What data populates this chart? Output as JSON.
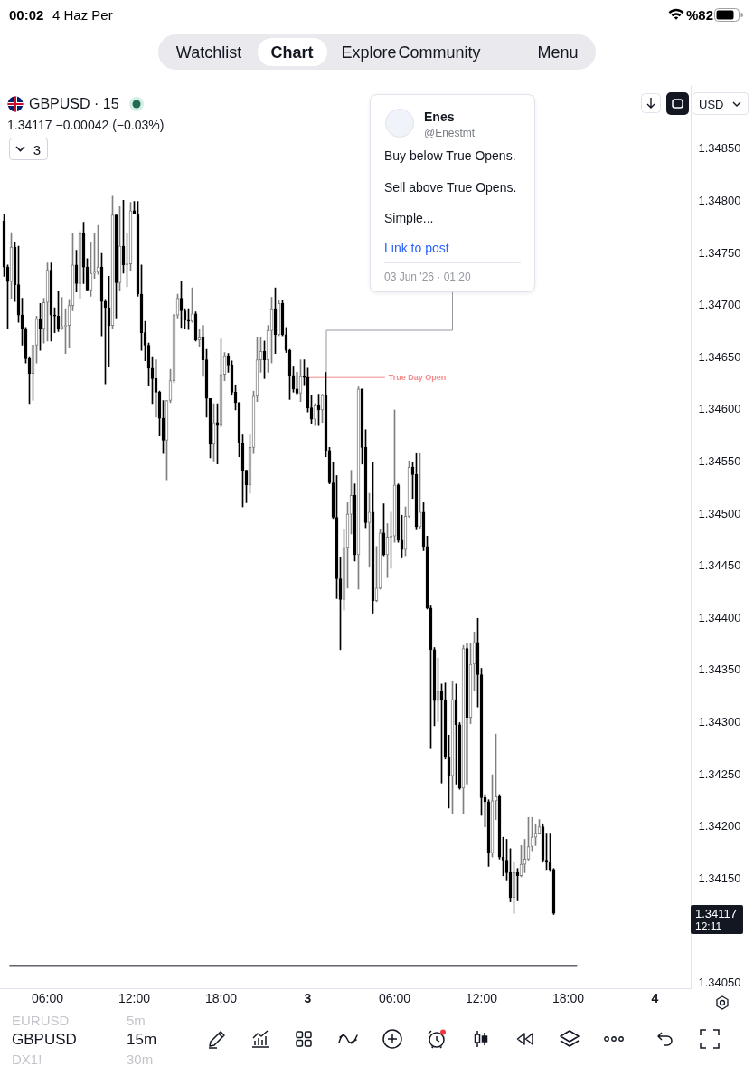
{
  "chart_data": {
    "type": "candlestick",
    "title": "GBPUSD · 15",
    "subtitle": "1.34117 −0.00042 (−0.03%)",
    "colors": [
      "#000000",
      "#000000",
      "#808080",
      "#000000",
      "#000000",
      "#000000",
      "#000000",
      "#000000",
      "#808080",
      "#808080",
      "#000000",
      "#808080",
      "#808080",
      "#000000",
      "#000000",
      "#000000",
      "#808080",
      "#808080",
      "#808080",
      "#808080",
      "#000000",
      "#808080",
      "#000000",
      "#000000",
      "#808080",
      "#808080",
      "#808080",
      "#000000",
      "#000000",
      "#000000",
      "#808080",
      "#000000",
      "#808080",
      "#000000",
      "#808080",
      "#808080",
      "#000000",
      "#000000",
      "#000000",
      "#000000",
      "#000000",
      "#000000",
      "#000000",
      "#000000",
      "#000000",
      "#808080",
      "#808080",
      "#808080",
      "#808080",
      "#000000",
      "#000000",
      "#000000",
      "#808080",
      "#000000",
      "#808080",
      "#000000",
      "#000000",
      "#000000",
      "#808080",
      "#000000",
      "#808080",
      "#808080",
      "#000000",
      "#000000",
      "#000000",
      "#000000",
      "#000000",
      "#000000",
      "#808080",
      "#808080",
      "#808080",
      "#808080",
      "#000000",
      "#808080",
      "#808080",
      "#000000",
      "#808080",
      "#000000",
      "#000000",
      "#000000",
      "#000000",
      "#000000",
      "#808080",
      "#000000",
      "#000000",
      "#000000",
      "#808080",
      "#000000",
      "#808080",
      "#000000",
      "#000000",
      "#000000",
      "#000000",
      "#000000",
      "#808080",
      "#808080",
      "#808080",
      "#000000",
      "#808080",
      "#000000",
      "#000000",
      "#808080",
      "#000000",
      "#808080",
      "#808080",
      "#000000",
      "#808080",
      "#808080",
      "#808080",
      "#000000",
      "#000000",
      "#808080",
      "#808080",
      "#000000",
      "#000000",
      "#808080",
      "#000000",
      "#000000",
      "#000000",
      "#000000",
      "#808080",
      "#000000",
      "#000000",
      "#000000",
      "#808080",
      "#000000",
      "#000000",
      "#808080",
      "#000000",
      "#808080",
      "#808080",
      "#000000",
      "#000000",
      "#000000",
      "#000000",
      "#808080",
      "#808080",
      "#000000",
      "#000000",
      "#000000",
      "#000000",
      "#808080",
      "#000000",
      "#808080",
      "#808080",
      "#808080",
      "#808080",
      "#808080",
      "#808080",
      "#000000",
      "#000000",
      "#000000",
      "#000000"
    ],
    "x": [
      "2026-06-02T03:00",
      "2026-06-02T03:15",
      "2026-06-02T03:30",
      "2026-06-02T03:45",
      "2026-06-02T04:00",
      "2026-06-02T04:15",
      "2026-06-02T04:30",
      "2026-06-02T04:45",
      "2026-06-02T05:00",
      "2026-06-02T05:15",
      "2026-06-02T05:30",
      "2026-06-02T05:45",
      "2026-06-02T06:00",
      "2026-06-02T06:15",
      "2026-06-02T06:30",
      "2026-06-02T06:45",
      "2026-06-02T07:00",
      "2026-06-02T07:15",
      "2026-06-02T07:30",
      "2026-06-02T07:45",
      "2026-06-02T08:00",
      "2026-06-02T08:15",
      "2026-06-02T08:30",
      "2026-06-02T08:45",
      "2026-06-02T09:00",
      "2026-06-02T09:15",
      "2026-06-02T09:30",
      "2026-06-02T09:45",
      "2026-06-02T10:00",
      "2026-06-02T10:15",
      "2026-06-02T10:30",
      "2026-06-02T10:45",
      "2026-06-02T11:00",
      "2026-06-02T11:15",
      "2026-06-02T11:30",
      "2026-06-02T11:45",
      "2026-06-02T12:00",
      "2026-06-02T12:15",
      "2026-06-02T12:30",
      "2026-06-02T12:45",
      "2026-06-02T13:00",
      "2026-06-02T13:15",
      "2026-06-02T13:30",
      "2026-06-02T13:45",
      "2026-06-02T14:00",
      "2026-06-02T14:15",
      "2026-06-02T14:30",
      "2026-06-02T14:45",
      "2026-06-02T15:00",
      "2026-06-02T15:15",
      "2026-06-02T15:30",
      "2026-06-02T15:45",
      "2026-06-02T16:00",
      "2026-06-02T16:15",
      "2026-06-02T16:30",
      "2026-06-02T16:45",
      "2026-06-02T17:00",
      "2026-06-02T17:15",
      "2026-06-02T17:30",
      "2026-06-02T17:45",
      "2026-06-02T18:00",
      "2026-06-02T18:15",
      "2026-06-02T18:30",
      "2026-06-02T18:45",
      "2026-06-02T19:00",
      "2026-06-02T19:15",
      "2026-06-02T19:30",
      "2026-06-02T19:45",
      "2026-06-02T20:00",
      "2026-06-02T20:15",
      "2026-06-02T20:30",
      "2026-06-02T20:45",
      "2026-06-02T21:00",
      "2026-06-02T21:15",
      "2026-06-02T21:30",
      "2026-06-02T21:45",
      "2026-06-02T22:00",
      "2026-06-02T22:15",
      "2026-06-02T22:30",
      "2026-06-02T22:45",
      "2026-06-02T23:00",
      "2026-06-02T23:15",
      "2026-06-02T23:30",
      "2026-06-02T23:45",
      "2026-06-03T00:00",
      "2026-06-03T00:15",
      "2026-06-03T00:30",
      "2026-06-03T00:45",
      "2026-06-03T01:00",
      "2026-06-03T01:15",
      "2026-06-03T01:30",
      "2026-06-03T01:45",
      "2026-06-03T02:00",
      "2026-06-03T02:15",
      "2026-06-03T02:30",
      "2026-06-03T02:45",
      "2026-06-03T03:00",
      "2026-06-03T03:15",
      "2026-06-03T03:30",
      "2026-06-03T03:45",
      "2026-06-03T04:00",
      "2026-06-03T04:15",
      "2026-06-03T04:30",
      "2026-06-03T04:45",
      "2026-06-03T05:00",
      "2026-06-03T05:15",
      "2026-06-03T05:30",
      "2026-06-03T05:45",
      "2026-06-03T06:00",
      "2026-06-03T06:15",
      "2026-06-03T06:30",
      "2026-06-03T06:45",
      "2026-06-03T07:00",
      "2026-06-03T07:15",
      "2026-06-03T07:30",
      "2026-06-03T07:45",
      "2026-06-03T08:00",
      "2026-06-03T08:15",
      "2026-06-03T08:30",
      "2026-06-03T08:45",
      "2026-06-03T09:00",
      "2026-06-03T09:15",
      "2026-06-03T09:30",
      "2026-06-03T09:45",
      "2026-06-03T10:00",
      "2026-06-03T10:15",
      "2026-06-03T10:30",
      "2026-06-03T10:45",
      "2026-06-03T11:00",
      "2026-06-03T11:15",
      "2026-06-03T11:30",
      "2026-06-03T11:45",
      "2026-06-03T12:00",
      "2026-06-03T12:15",
      "2026-06-03T12:30",
      "2026-06-03T12:45",
      "2026-06-03T13:00",
      "2026-06-03T13:15",
      "2026-06-03T13:30",
      "2026-06-03T13:45",
      "2026-06-03T14:00",
      "2026-06-03T14:15",
      "2026-06-03T14:30",
      "2026-06-03T14:45",
      "2026-06-03T15:00",
      "2026-06-03T15:15",
      "2026-06-03T15:30",
      "2026-06-03T15:45",
      "2026-06-03T16:00",
      "2026-06-03T16:15",
      "2026-06-03T16:30",
      "2026-06-03T16:45",
      "2026-06-03T17:00"
    ],
    "ohlc": [
      [
        1.34781,
        1.34788,
        1.34728,
        1.34737
      ],
      [
        1.34737,
        1.34739,
        1.34678,
        1.34723
      ],
      [
        1.34723,
        1.3477,
        1.34707,
        1.34756
      ],
      [
        1.34756,
        1.34761,
        1.34704,
        1.3472
      ],
      [
        1.3472,
        1.34757,
        1.34684,
        1.34691
      ],
      [
        1.34691,
        1.34707,
        1.34662,
        1.34678
      ],
      [
        1.34678,
        1.34679,
        1.34645,
        1.34649
      ],
      [
        1.34649,
        1.34651,
        1.34606,
        1.34635
      ],
      [
        1.34635,
        1.34662,
        1.34609,
        1.34662
      ],
      [
        1.34662,
        1.3469,
        1.34645,
        1.34687
      ],
      [
        1.34687,
        1.34702,
        1.34657,
        1.34678
      ],
      [
        1.34678,
        1.34707,
        1.34664,
        1.34703
      ],
      [
        1.34703,
        1.34741,
        1.34666,
        1.34734
      ],
      [
        1.34734,
        1.34741,
        1.34666,
        1.34691
      ],
      [
        1.34691,
        1.34698,
        1.34674,
        1.3469
      ],
      [
        1.3469,
        1.34714,
        1.34675,
        1.34678
      ],
      [
        1.34678,
        1.34708,
        1.34677,
        1.3468
      ],
      [
        1.3468,
        1.34697,
        1.34654,
        1.34681
      ],
      [
        1.34681,
        1.34706,
        1.3466,
        1.347
      ],
      [
        1.347,
        1.34769,
        1.34695,
        1.34739
      ],
      [
        1.34739,
        1.34753,
        1.34713,
        1.34721
      ],
      [
        1.34721,
        1.34771,
        1.34707,
        1.34769
      ],
      [
        1.34769,
        1.3478,
        1.34721,
        1.34737
      ],
      [
        1.34737,
        1.34745,
        1.34715,
        1.34715
      ],
      [
        1.34715,
        1.34761,
        1.34709,
        1.34731
      ],
      [
        1.34731,
        1.34769,
        1.34726,
        1.34732
      ],
      [
        1.34732,
        1.34777,
        1.3473,
        1.34737
      ],
      [
        1.34737,
        1.3475,
        1.34671,
        1.34704
      ],
      [
        1.34704,
        1.34706,
        1.34625,
        1.34698
      ],
      [
        1.34698,
        1.34728,
        1.34641,
        1.34681
      ],
      [
        1.34681,
        1.34805,
        1.34678,
        1.34787
      ],
      [
        1.34787,
        1.34787,
        1.34688,
        1.34722
      ],
      [
        1.34722,
        1.34795,
        1.34714,
        1.34757
      ],
      [
        1.34757,
        1.34801,
        1.34731,
        1.34739
      ],
      [
        1.34739,
        1.34769,
        1.34718,
        1.3474
      ],
      [
        1.3474,
        1.34799,
        1.34733,
        1.34791
      ],
      [
        1.34791,
        1.348,
        1.34788,
        1.34788
      ],
      [
        1.34788,
        1.348,
        1.34709,
        1.34711
      ],
      [
        1.34711,
        1.34739,
        1.34657,
        1.34674
      ],
      [
        1.34674,
        1.34685,
        1.34647,
        1.34662
      ],
      [
        1.34662,
        1.34664,
        1.34623,
        1.3464
      ],
      [
        1.3464,
        1.34651,
        1.34606,
        1.3463
      ],
      [
        1.3463,
        1.34648,
        1.34593,
        1.34617
      ],
      [
        1.34617,
        1.34618,
        1.34575,
        1.34592
      ],
      [
        1.34592,
        1.34609,
        1.34558,
        1.34571
      ],
      [
        1.34571,
        1.34609,
        1.34533,
        1.34609
      ],
      [
        1.34609,
        1.34639,
        1.34607,
        1.34628
      ],
      [
        1.34628,
        1.34692,
        1.34626,
        1.34691
      ],
      [
        1.34691,
        1.34711,
        1.34688,
        1.34707
      ],
      [
        1.34707,
        1.34723,
        1.34679,
        1.34695
      ],
      [
        1.34695,
        1.34697,
        1.34678,
        1.34686
      ],
      [
        1.34686,
        1.34697,
        1.34677,
        1.34685
      ],
      [
        1.34685,
        1.34717,
        1.34684,
        1.34692
      ],
      [
        1.34692,
        1.34694,
        1.34666,
        1.34667
      ],
      [
        1.34667,
        1.34677,
        1.34661,
        1.3467
      ],
      [
        1.3467,
        1.34681,
        1.34632,
        1.34648
      ],
      [
        1.34648,
        1.34658,
        1.34593,
        1.34611
      ],
      [
        1.34611,
        1.34611,
        1.34554,
        1.34567
      ],
      [
        1.34567,
        1.34606,
        1.34551,
        1.34588
      ],
      [
        1.34588,
        1.34606,
        1.34548,
        1.34585
      ],
      [
        1.34585,
        1.34668,
        1.34584,
        1.34634
      ],
      [
        1.34634,
        1.34655,
        1.34628,
        1.34652
      ],
      [
        1.34652,
        1.34654,
        1.34636,
        1.34643
      ],
      [
        1.34643,
        1.34647,
        1.34614,
        1.34617
      ],
      [
        1.34617,
        1.34624,
        1.346,
        1.34607
      ],
      [
        1.34607,
        1.34607,
        1.34555,
        1.34568
      ],
      [
        1.34568,
        1.34576,
        1.34507,
        1.34542
      ],
      [
        1.34542,
        1.34542,
        1.34511,
        1.34528
      ],
      [
        1.34528,
        1.34576,
        1.3452,
        1.34564
      ],
      [
        1.34564,
        1.34618,
        1.34558,
        1.34613
      ],
      [
        1.34613,
        1.3467,
        1.34608,
        1.34648
      ],
      [
        1.34648,
        1.3467,
        1.34636,
        1.34656
      ],
      [
        1.34656,
        1.34666,
        1.3463,
        1.34648
      ],
      [
        1.34648,
        1.34681,
        1.34636,
        1.34676
      ],
      [
        1.34676,
        1.34708,
        1.34645,
        1.34697
      ],
      [
        1.34697,
        1.34717,
        1.34654,
        1.34672
      ],
      [
        1.34672,
        1.34705,
        1.34671,
        1.34702
      ],
      [
        1.34702,
        1.34705,
        1.34671,
        1.34672
      ],
      [
        1.34672,
        1.34679,
        1.34655,
        1.34657
      ],
      [
        1.34657,
        1.34658,
        1.3461,
        1.34633
      ],
      [
        1.34633,
        1.34642,
        1.34617,
        1.3462
      ],
      [
        1.3462,
        1.34636,
        1.34615,
        1.34616
      ],
      [
        1.34616,
        1.34648,
        1.34608,
        1.34632
      ],
      [
        1.34632,
        1.34648,
        1.34624,
        1.34631
      ],
      [
        1.34631,
        1.3464,
        1.34598,
        1.34602
      ],
      [
        1.34602,
        1.34614,
        1.34587,
        1.34591
      ],
      [
        1.34591,
        1.34606,
        1.34585,
        1.34604
      ],
      [
        1.34604,
        1.34615,
        1.34585,
        1.346
      ],
      [
        1.346,
        1.34615,
        1.34588,
        1.34614
      ],
      [
        1.34614,
        1.34636,
        1.34555,
        1.34561
      ],
      [
        1.34561,
        1.34564,
        1.34529,
        1.3453
      ],
      [
        1.3453,
        1.3455,
        1.34495,
        1.34497
      ],
      [
        1.34497,
        1.34537,
        1.34419,
        1.34438
      ],
      [
        1.34438,
        1.34459,
        1.3437,
        1.34418
      ],
      [
        1.34418,
        1.34485,
        1.34408,
        1.34468
      ],
      [
        1.34468,
        1.34511,
        1.34429,
        1.345
      ],
      [
        1.345,
        1.34542,
        1.34481,
        1.34518
      ],
      [
        1.34518,
        1.34529,
        1.34455,
        1.34461
      ],
      [
        1.34461,
        1.34622,
        1.34428,
        1.3462
      ],
      [
        1.3462,
        1.3462,
        1.34548,
        1.34564
      ],
      [
        1.34564,
        1.34581,
        1.34487,
        1.34492
      ],
      [
        1.34492,
        1.3452,
        1.34449,
        1.34502
      ],
      [
        1.34502,
        1.3455,
        1.34405,
        1.34417
      ],
      [
        1.34417,
        1.34469,
        1.34416,
        1.34429
      ],
      [
        1.34429,
        1.34485,
        1.34428,
        1.34482
      ],
      [
        1.34482,
        1.3451,
        1.3446,
        1.34461
      ],
      [
        1.34461,
        1.34491,
        1.34439,
        1.34478
      ],
      [
        1.34478,
        1.34502,
        1.34448,
        1.34479
      ],
      [
        1.34479,
        1.346,
        1.34473,
        1.34528
      ],
      [
        1.34528,
        1.34529,
        1.34473,
        1.34475
      ],
      [
        1.34475,
        1.34499,
        1.34458,
        1.34466
      ],
      [
        1.34466,
        1.34507,
        1.3446,
        1.34498
      ],
      [
        1.34498,
        1.34551,
        1.34497,
        1.34545
      ],
      [
        1.34545,
        1.3455,
        1.34515,
        1.34538
      ],
      [
        1.34538,
        1.34558,
        1.34485,
        1.34488
      ],
      [
        1.34488,
        1.34558,
        1.34486,
        1.34502
      ],
      [
        1.34502,
        1.34511,
        1.34465,
        1.34469
      ],
      [
        1.34469,
        1.34479,
        1.34409,
        1.3441
      ],
      [
        1.3441,
        1.34412,
        1.34275,
        1.3437
      ],
      [
        1.3437,
        1.34372,
        1.34297,
        1.34321
      ],
      [
        1.34321,
        1.34362,
        1.34301,
        1.3433
      ],
      [
        1.3433,
        1.34337,
        1.34242,
        1.34322
      ],
      [
        1.34322,
        1.34338,
        1.34265,
        1.34267
      ],
      [
        1.34267,
        1.34288,
        1.34218,
        1.34249
      ],
      [
        1.34249,
        1.3434,
        1.34213,
        1.34322
      ],
      [
        1.34322,
        1.34337,
        1.34241,
        1.34298
      ],
      [
        1.34298,
        1.343,
        1.34236,
        1.34237
      ],
      [
        1.34237,
        1.34374,
        1.34213,
        1.34371
      ],
      [
        1.34371,
        1.34376,
        1.34241,
        1.34305
      ],
      [
        1.34305,
        1.34376,
        1.34299,
        1.34356
      ],
      [
        1.34356,
        1.34387,
        1.34331,
        1.34377
      ],
      [
        1.34377,
        1.344,
        1.34315,
        1.34346
      ],
      [
        1.34346,
        1.34352,
        1.34211,
        1.34228
      ],
      [
        1.34228,
        1.34231,
        1.342,
        1.34224
      ],
      [
        1.34224,
        1.34226,
        1.34162,
        1.34175
      ],
      [
        1.34175,
        1.3425,
        1.34171,
        1.34225
      ],
      [
        1.34225,
        1.34289,
        1.34207,
        1.34229
      ],
      [
        1.34229,
        1.34231,
        1.34169,
        1.34171
      ],
      [
        1.34171,
        1.3419,
        1.34153,
        1.34168
      ],
      [
        1.34168,
        1.34188,
        1.34149,
        1.34156
      ],
      [
        1.34156,
        1.34179,
        1.34128,
        1.34132
      ],
      [
        1.34132,
        1.34166,
        1.34117,
        1.34156
      ],
      [
        1.34156,
        1.3416,
        1.34129,
        1.34153
      ],
      [
        1.34153,
        1.34182,
        1.34152,
        1.34164
      ],
      [
        1.34164,
        1.34188,
        1.34156,
        1.34169
      ],
      [
        1.34169,
        1.34209,
        1.34168,
        1.34181
      ],
      [
        1.34181,
        1.34209,
        1.34177,
        1.3419
      ],
      [
        1.3419,
        1.34203,
        1.34182,
        1.34194
      ],
      [
        1.34194,
        1.34207,
        1.34193,
        1.342
      ],
      [
        1.342,
        1.34203,
        1.34166,
        1.34168
      ],
      [
        1.34168,
        1.34194,
        1.34159,
        1.34166
      ],
      [
        1.34166,
        1.34194,
        1.34158,
        1.34159
      ],
      [
        1.34159,
        1.3416,
        1.34116,
        1.34117
      ]
    ],
    "series": [
      {
        "type": "line",
        "name": "True Day Open",
        "color": "#f28b8b",
        "x": [
          "2026-06-03T00:00",
          "2026-06-03T05:20"
        ],
        "values": [
          1.34631,
          1.34631
        ]
      },
      {
        "type": "line",
        "color": "#131722",
        "x": [
          "2026-06-02T03:22",
          "2026-06-03T18:37"
        ],
        "values": [
          1.34067,
          1.34067
        ]
      }
    ],
    "xlim": [
      "2026-06-02T02:45",
      "2026-06-04T02:30"
    ],
    "xticks": [
      {
        "value": "2026-06-02T06:00",
        "label": "06:00"
      },
      {
        "value": "2026-06-02T12:00",
        "label": "12:00"
      },
      {
        "value": "2026-06-02T18:00",
        "label": "18:00"
      },
      {
        "value": "2026-06-03T00:00",
        "label": "3"
      },
      {
        "value": "2026-06-03T06:00",
        "label": "06:00"
      },
      {
        "value": "2026-06-03T12:00",
        "label": "12:00"
      },
      {
        "value": "2026-06-03T18:00",
        "label": "18:00"
      },
      {
        "value": "2026-06-04T00:00",
        "label": "4"
      }
    ],
    "ylim": [
      1.34045,
      1.3491
    ],
    "yticks": [
      {
        "value": 1.3405,
        "label": "1.34050"
      },
      {
        "value": 1.3415,
        "label": "1.34150"
      },
      {
        "value": 1.342,
        "label": "1.34200"
      },
      {
        "value": 1.3425,
        "label": "1.34250"
      },
      {
        "value": 1.343,
        "label": "1.34300"
      },
      {
        "value": 1.3435,
        "label": "1.34350"
      },
      {
        "value": 1.344,
        "label": "1.34400"
      },
      {
        "value": 1.3445,
        "label": "1.34450"
      },
      {
        "value": 1.345,
        "label": "1.34500"
      },
      {
        "value": 1.3455,
        "label": "1.34550"
      },
      {
        "value": 1.346,
        "label": "1.34600"
      },
      {
        "value": 1.3465,
        "label": "1.34650"
      },
      {
        "value": 1.347,
        "label": "1.34700"
      },
      {
        "value": 1.3475,
        "label": "1.34750"
      },
      {
        "value": 1.348,
        "label": "1.34800"
      },
      {
        "value": 1.3485,
        "label": "1.34850"
      }
    ],
    "annotations": [
      "00:02",
      "4 Haz Per",
      "%82",
      "Watchlist",
      "Chart",
      "Explore",
      "Community",
      "Menu",
      "3",
      "USD",
      "Enes",
      "@Enestmt",
      "Buy below True Opens.",
      "Sell above True Opens.",
      "Simple...",
      "Link to post",
      {
        "text": "03 Jun '26 · 01:20",
        "x": "2026-06-03T01:15",
        "y": 1.34636
      },
      "1.34117",
      "12:11",
      "EURUSD",
      "5m",
      "GBPUSD",
      "15m",
      "DX1!",
      "30m"
    ]
  }
}
